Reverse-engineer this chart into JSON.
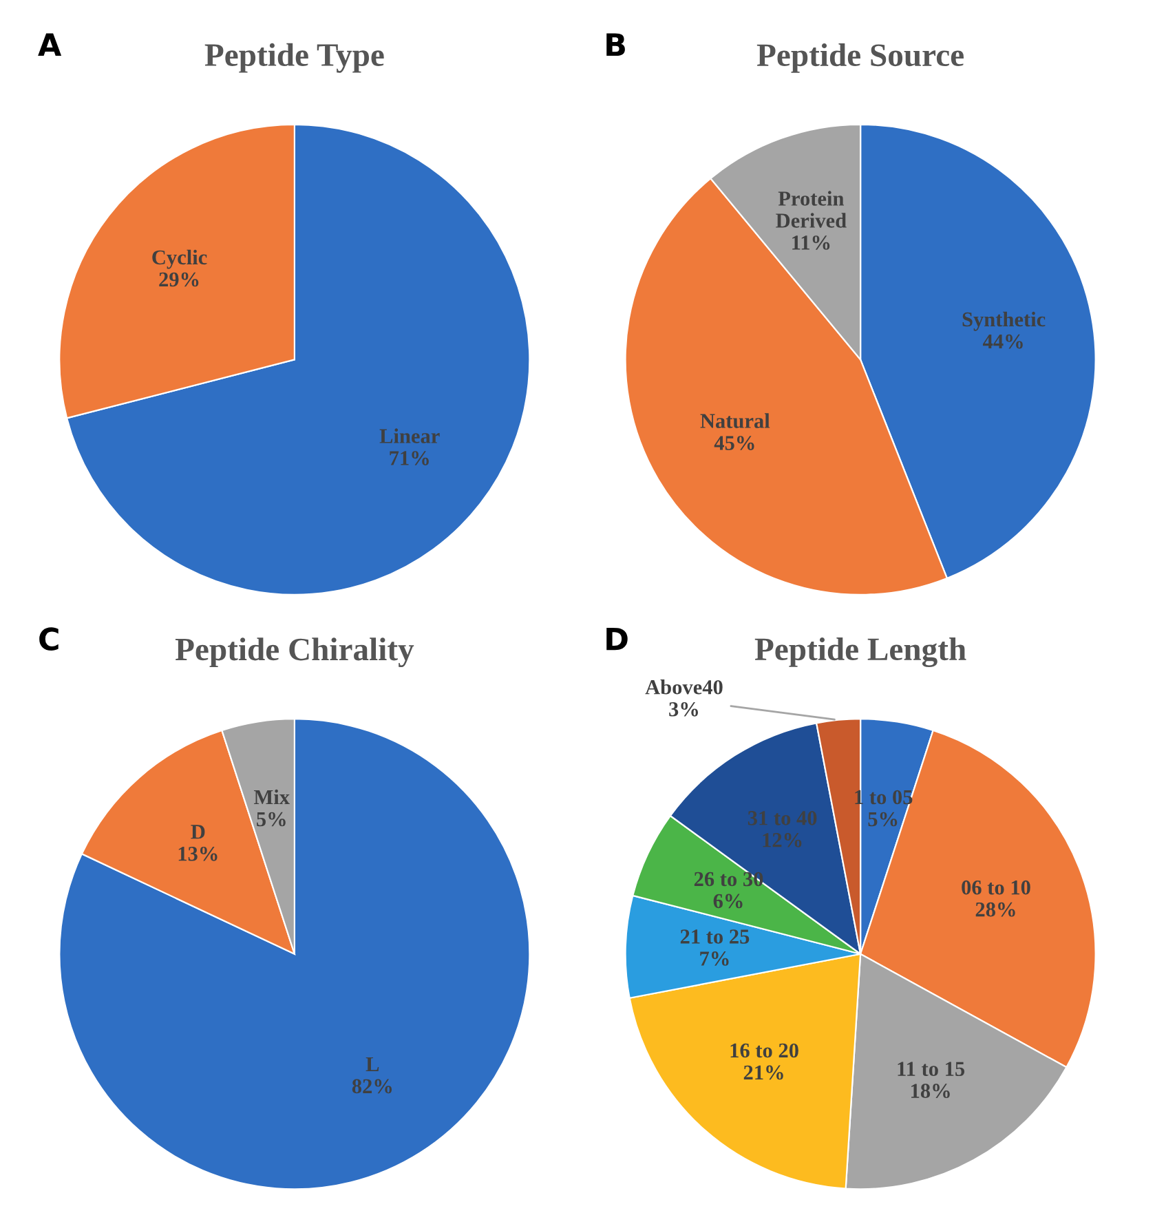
{
  "chart_data": [
    {
      "type": "pie",
      "title": "Peptide Type",
      "annotations": [
        "A"
      ],
      "categories": [
        "Linear",
        "Cyclic"
      ],
      "values": [
        71,
        29
      ],
      "value_labels": [
        "71%",
        "29%"
      ],
      "colors": [
        "#2f6fc4",
        "#ef7a3a"
      ]
    },
    {
      "type": "pie",
      "title": "Peptide Source",
      "annotations": [
        "B"
      ],
      "categories": [
        "Synthetic",
        "Natural",
        "Protein\nDerived"
      ],
      "values": [
        44,
        45,
        11
      ],
      "value_labels": [
        "44%",
        "45%",
        "11%"
      ],
      "colors": [
        "#2f6fc4",
        "#ef7a3a",
        "#a5a5a5"
      ]
    },
    {
      "type": "pie",
      "title": "Peptide Chirality",
      "annotations": [
        "C"
      ],
      "categories": [
        "L",
        "D",
        "Mix"
      ],
      "values": [
        82,
        13,
        5
      ],
      "value_labels": [
        "82%",
        "13%",
        "5%"
      ],
      "colors": [
        "#2f6fc4",
        "#ef7a3a",
        "#a5a5a5"
      ]
    },
    {
      "type": "pie",
      "title": "Peptide Length",
      "annotations": [
        "D"
      ],
      "categories": [
        "1 to 05",
        "06 to 10",
        "11 to 15",
        "16 to 20",
        "21 to 25",
        "26 to 30",
        "31 to 40",
        "Above40"
      ],
      "values": [
        5,
        28,
        18,
        21,
        7,
        6,
        12,
        3
      ],
      "value_labels": [
        "5%",
        "28%",
        "18%",
        "21%",
        "7%",
        "6%",
        "12%",
        "3%"
      ],
      "colors": [
        "#2f6fc4",
        "#ef7a3a",
        "#a5a5a5",
        "#fdbb1f",
        "#2a9de0",
        "#4bb548",
        "#1f4e96",
        "#c95a2c"
      ]
    }
  ]
}
